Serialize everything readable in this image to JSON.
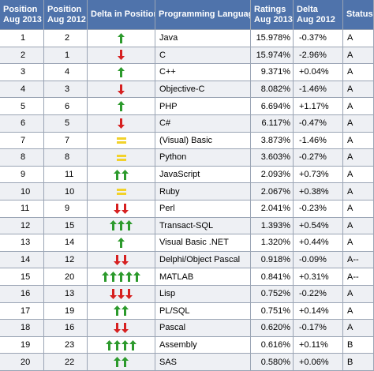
{
  "table": {
    "header": [
      [
        "Position",
        "Aug 2013"
      ],
      [
        "Position",
        "Aug 2012"
      ],
      [
        "Delta in Position"
      ],
      [
        "Programming Language"
      ],
      [
        "Ratings",
        "Aug 2013"
      ],
      [
        "Delta",
        "Aug 2012"
      ],
      [
        "Status"
      ]
    ],
    "rows": [
      [
        "1",
        "2",
        "Java",
        "15.978%",
        "-0.37%",
        "A"
      ],
      [
        "2",
        "1",
        "C",
        "15.974%",
        "-2.96%",
        "A"
      ],
      [
        "3",
        "4",
        "C++",
        "9.371%",
        "+0.04%",
        "A"
      ],
      [
        "4",
        "3",
        "Objective-C",
        "8.082%",
        "-1.46%",
        "A"
      ],
      [
        "5",
        "6",
        "PHP",
        "6.694%",
        "+1.17%",
        "A"
      ],
      [
        "6",
        "5",
        "C#",
        "6.117%",
        "-0.47%",
        "A"
      ],
      [
        "7",
        "7",
        "(Visual) Basic",
        "3.873%",
        "-1.46%",
        "A"
      ],
      [
        "8",
        "8",
        "Python",
        "3.603%",
        "-0.27%",
        "A"
      ],
      [
        "9",
        "11",
        "JavaScript",
        "2.093%",
        "+0.73%",
        "A"
      ],
      [
        "10",
        "10",
        "Ruby",
        "2.067%",
        "+0.38%",
        "A"
      ],
      [
        "11",
        "9",
        "Perl",
        "2.041%",
        "-0.23%",
        "A"
      ],
      [
        "12",
        "15",
        "Transact-SQL",
        "1.393%",
        "+0.54%",
        "A"
      ],
      [
        "13",
        "14",
        "Visual Basic .NET",
        "1.320%",
        "+0.44%",
        "A"
      ],
      [
        "14",
        "12",
        "Delphi/Object Pascal",
        "0.918%",
        "-0.09%",
        "A--"
      ],
      [
        "15",
        "20",
        "MATLAB",
        "0.841%",
        "+0.31%",
        "A--"
      ],
      [
        "16",
        "13",
        "Lisp",
        "0.752%",
        "-0.22%",
        "A"
      ],
      [
        "17",
        "19",
        "PL/SQL",
        "0.751%",
        "+0.14%",
        "A"
      ],
      [
        "18",
        "16",
        "Pascal",
        "0.620%",
        "-0.17%",
        "A"
      ],
      [
        "19",
        "23",
        "Assembly",
        "0.616%",
        "+0.11%",
        "B"
      ],
      [
        "20",
        "22",
        "SAS",
        "0.580%",
        "+0.06%",
        "B"
      ]
    ]
  }
}
